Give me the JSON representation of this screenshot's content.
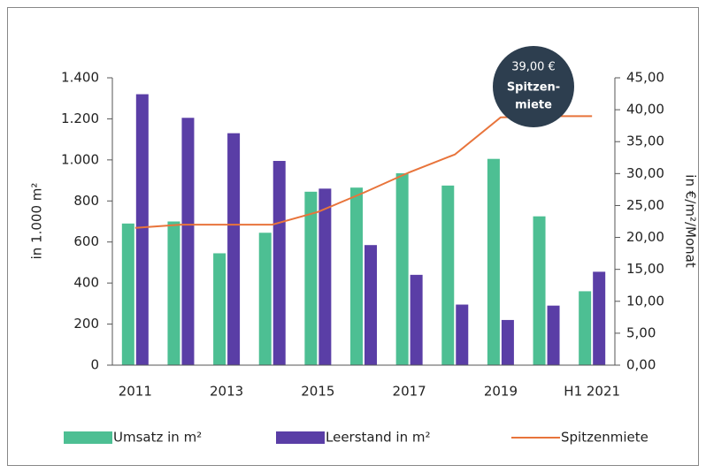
{
  "chart_data": {
    "type": "bar-line",
    "categories": [
      "2011",
      null,
      "2013",
      null,
      "2015",
      null,
      "2017",
      null,
      "2019",
      null,
      "H1 2021"
    ],
    "series": [
      {
        "name": "Umsatz in m²",
        "type": "bar",
        "color": "#4dbf93",
        "values": [
          690,
          700,
          545,
          645,
          845,
          865,
          935,
          875,
          1005,
          725,
          360
        ]
      },
      {
        "name": "Leerstand in m²",
        "type": "bar",
        "color": "#5a3ea6",
        "values": [
          1320,
          1205,
          1130,
          995,
          860,
          585,
          440,
          295,
          220,
          290,
          455
        ]
      },
      {
        "name": "Spitzenmiete",
        "type": "line",
        "axis": "y2",
        "color": "#e8743b",
        "values": [
          21.5,
          22,
          22,
          22,
          24,
          27,
          30.2,
          33,
          38.8,
          39,
          39
        ]
      }
    ],
    "ylabel": "in 1.000 m²",
    "y2label": "in €/m²/Monat",
    "ylim": [
      0,
      1400
    ],
    "yticks": [
      0,
      200,
      400,
      600,
      800,
      {
        "value": 1000,
        "label": "1.000"
      },
      {
        "value": 1200,
        "label": "1.200"
      },
      {
        "value": 1400,
        "label": "1.400"
      }
    ],
    "y2lim": [
      0,
      45
    ],
    "y2ticks": [
      {
        "value": 0,
        "label": "0,00"
      },
      {
        "value": 5,
        "label": "5,00"
      },
      {
        "value": 10,
        "label": "10,00"
      },
      {
        "value": 15,
        "label": "15,00"
      },
      {
        "value": 20,
        "label": "20,00"
      },
      {
        "value": 25,
        "label": "25,00"
      },
      {
        "value": 30,
        "label": "30,00"
      },
      {
        "value": 35,
        "label": "35,00"
      },
      {
        "value": 40,
        "label": "40,00"
      },
      {
        "value": 45,
        "label": "45,00"
      }
    ],
    "annotation": {
      "value_label": "39,00 €",
      "text": [
        "Spitzen-",
        "miete"
      ],
      "color": "#2d3e4f"
    },
    "legend": "bottom"
  }
}
